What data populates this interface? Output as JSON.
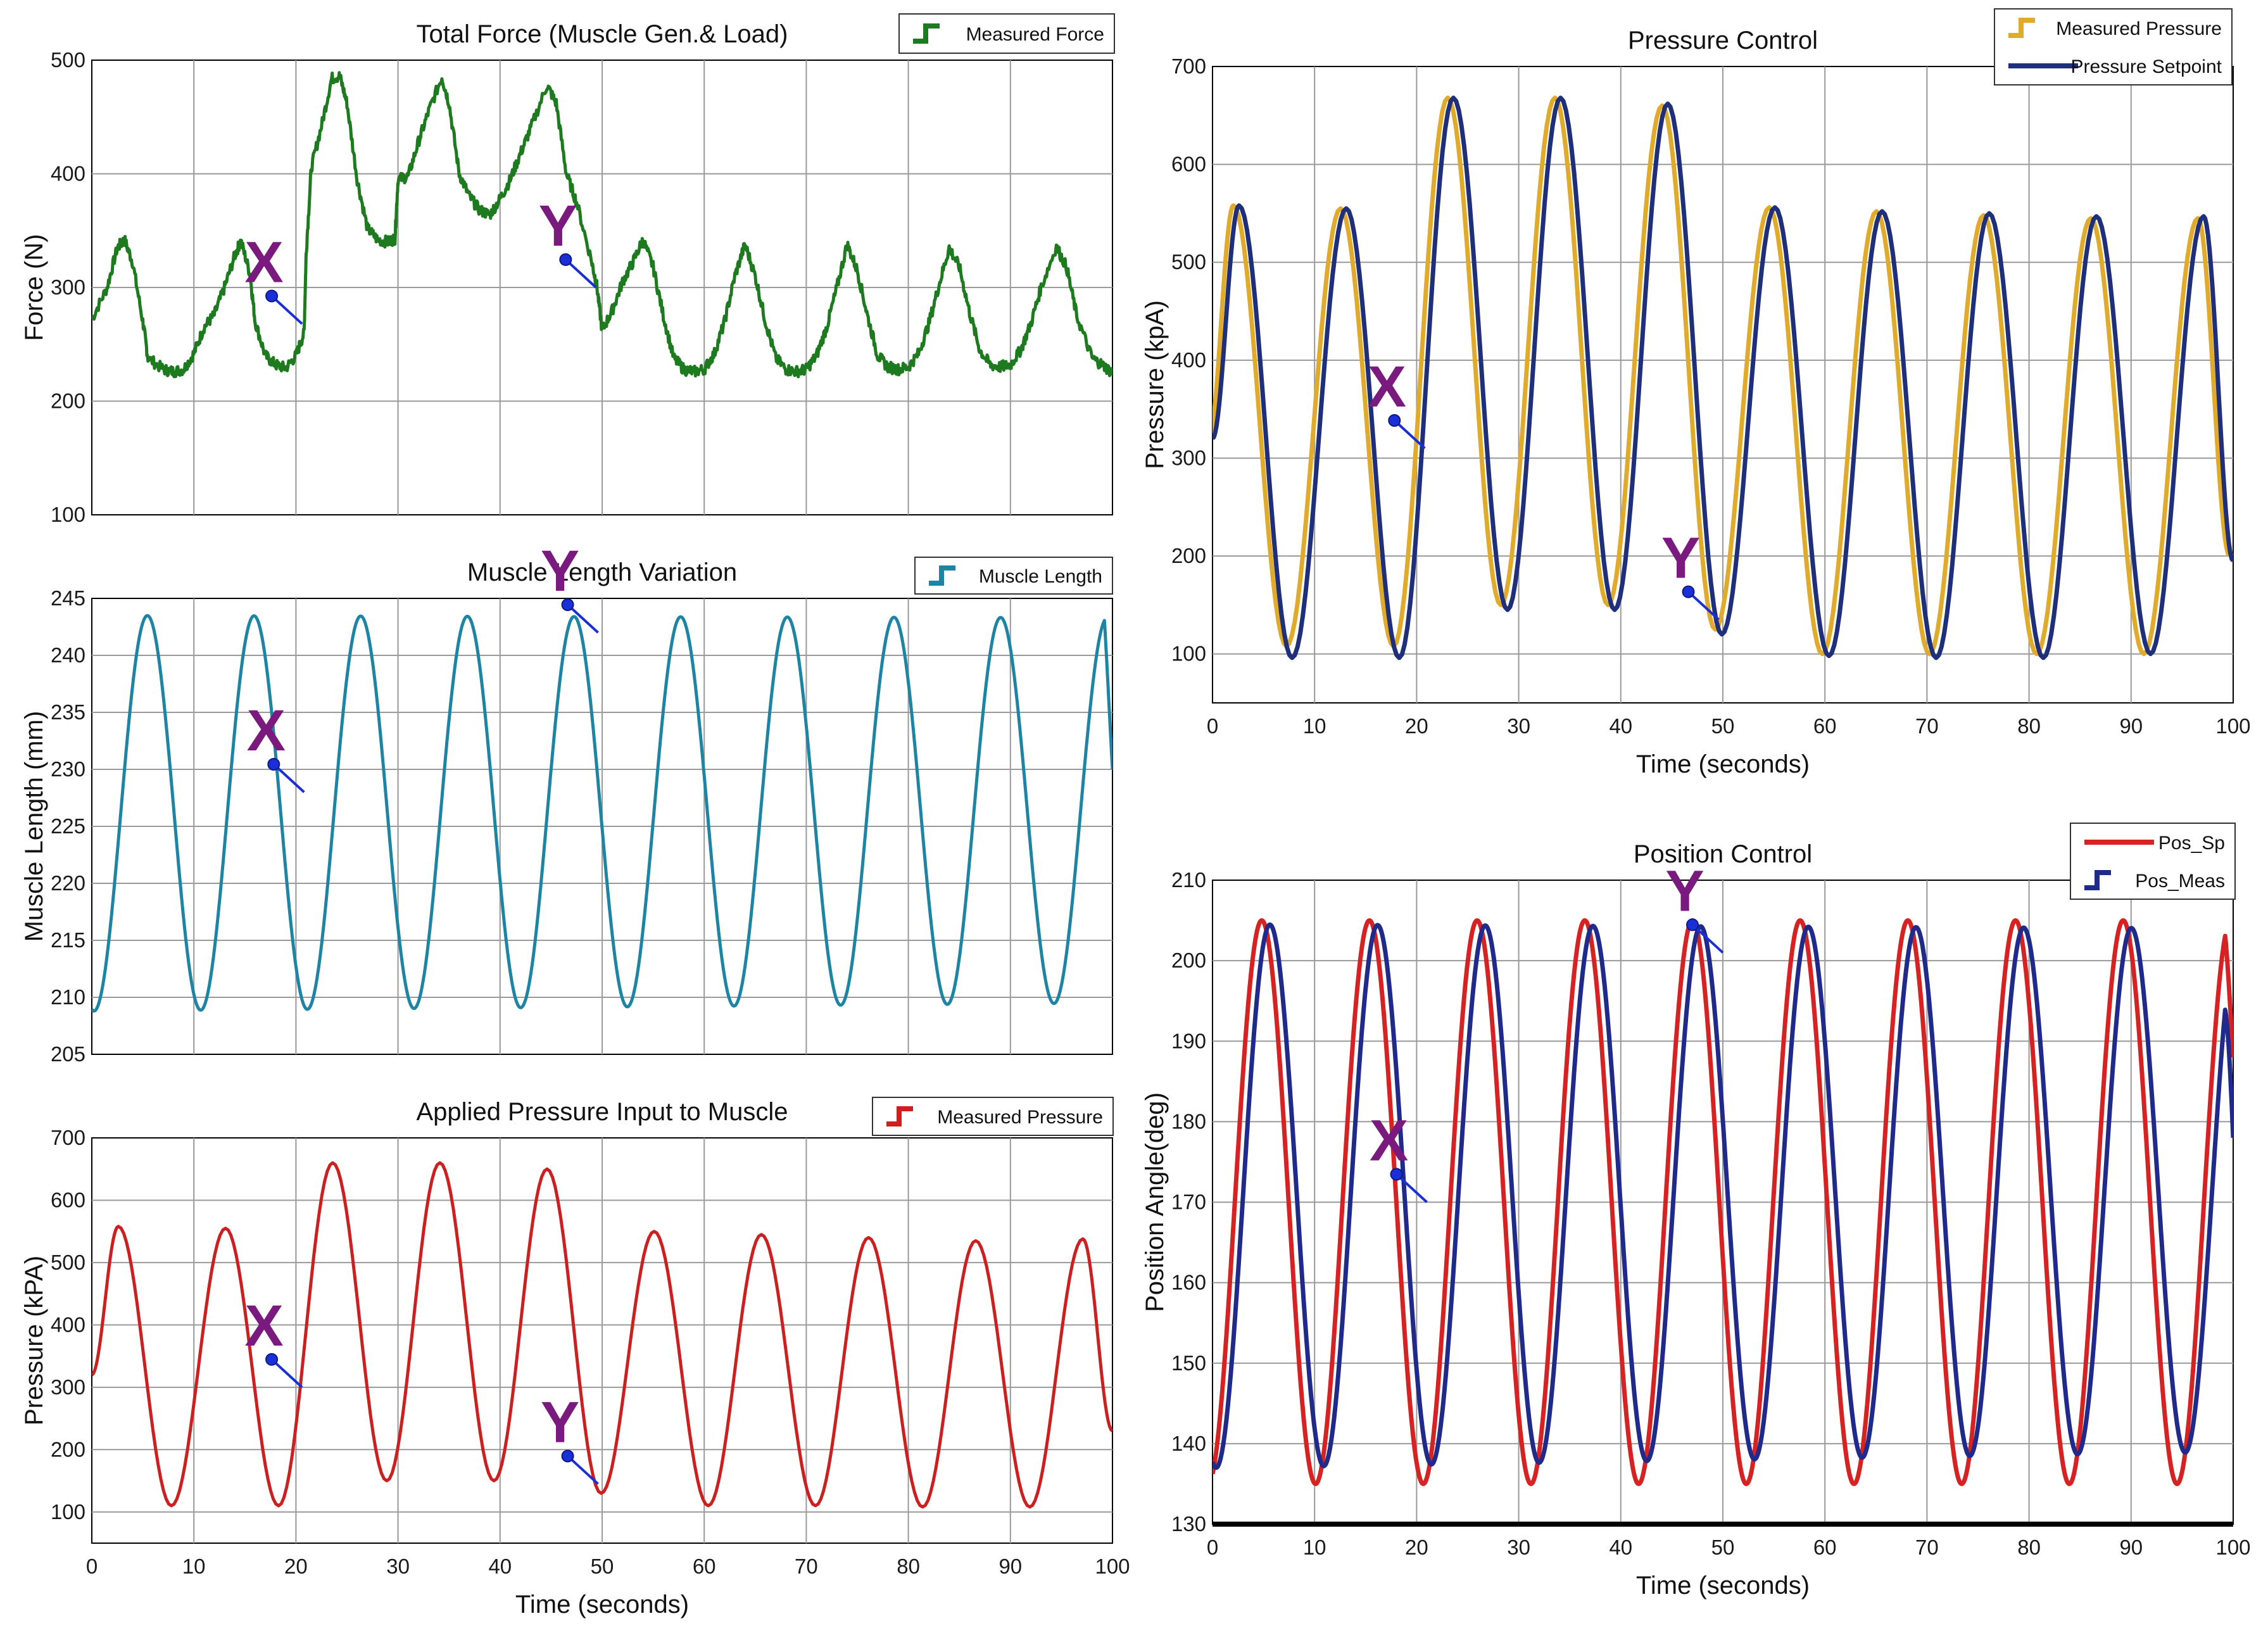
{
  "chart_data": [
    {
      "id": "force",
      "type": "line",
      "title": "Total Force (Muscle Gen.& Load)",
      "xlabel": "",
      "ylabel": "Force (N)",
      "xlim": [
        0,
        100
      ],
      "ylim": [
        100,
        500
      ],
      "xticks": [],
      "yticks": [
        100,
        200,
        300,
        400,
        500
      ],
      "xgrid": [
        10,
        20,
        30,
        40,
        50,
        60,
        70,
        80,
        90
      ],
      "grid": true,
      "legend_position": "top-right",
      "series": [
        {
          "name": "Measured Force",
          "color": "#1e7a1e",
          "style": "step",
          "points": [
            [
              0,
              272
            ],
            [
              1.5,
              300
            ],
            [
              2.5,
              335
            ],
            [
              3.2,
              342
            ],
            [
              4,
              322
            ],
            [
              5,
              270
            ],
            [
              5.5,
              238
            ],
            [
              7,
              228
            ],
            [
              8,
              226
            ],
            [
              9,
              228
            ],
            [
              10,
              242
            ],
            [
              11,
              265
            ],
            [
              12,
              276
            ],
            [
              13,
              300
            ],
            [
              14,
              328
            ],
            [
              14.6,
              341
            ],
            [
              15.5,
              312
            ],
            [
              16,
              270
            ],
            [
              17,
              240
            ],
            [
              18,
              232
            ],
            [
              19,
              229
            ],
            [
              20,
              240
            ],
            [
              20.8,
              260
            ],
            [
              21,
              330
            ],
            [
              21.5,
              405
            ],
            [
              22.5,
              442
            ],
            [
              23.5,
              484
            ],
            [
              24.3,
              486
            ],
            [
              25,
              462
            ],
            [
              26,
              395
            ],
            [
              27,
              352
            ],
            [
              28,
              342
            ],
            [
              29,
              340
            ],
            [
              29.7,
              343
            ],
            [
              30,
              395
            ],
            [
              31,
              398
            ],
            [
              32,
              428
            ],
            [
              33,
              455
            ],
            [
              34.3,
              485
            ],
            [
              35,
              462
            ],
            [
              36,
              400
            ],
            [
              37,
              380
            ],
            [
              38,
              368
            ],
            [
              39,
              364
            ],
            [
              40,
              378
            ],
            [
              41,
              395
            ],
            [
              42,
              418
            ],
            [
              43,
              440
            ],
            [
              44.6,
              478
            ],
            [
              45.5,
              462
            ],
            [
              46.5,
              400
            ],
            [
              47.5,
              375
            ],
            [
              49,
              322
            ],
            [
              49.5,
              300
            ],
            [
              50,
              262
            ],
            [
              51,
              280
            ],
            [
              52,
              305
            ],
            [
              53,
              322
            ],
            [
              54,
              342
            ],
            [
              55,
              318
            ],
            [
              56,
              275
            ],
            [
              57,
              238
            ],
            [
              58,
              228
            ],
            [
              59,
              226
            ],
            [
              60,
              228
            ],
            [
              61,
              242
            ],
            [
              62,
              270
            ],
            [
              63,
              310
            ],
            [
              64,
              338
            ],
            [
              65,
              310
            ],
            [
              66,
              270
            ],
            [
              67,
              238
            ],
            [
              68,
              228
            ],
            [
              69,
              226
            ],
            [
              70,
              228
            ],
            [
              71,
              240
            ],
            [
              72,
              265
            ],
            [
              73,
              300
            ],
            [
              74,
              338
            ],
            [
              75,
              315
            ],
            [
              76,
              275
            ],
            [
              77,
              240
            ],
            [
              78,
              230
            ],
            [
              79,
              228
            ],
            [
              80,
              230
            ],
            [
              81,
              242
            ],
            [
              82,
              268
            ],
            [
              83,
              302
            ],
            [
              84,
              335
            ],
            [
              85,
              318
            ],
            [
              86,
              278
            ],
            [
              87,
              245
            ],
            [
              88,
              232
            ],
            [
              89,
              230
            ],
            [
              90,
              232
            ],
            [
              91,
              245
            ],
            [
              92,
              268
            ],
            [
              93,
              300
            ],
            [
              94.5,
              336
            ],
            [
              95.5,
              318
            ],
            [
              96.5,
              275
            ],
            [
              98,
              238
            ],
            [
              99,
              232
            ],
            [
              100,
              225
            ]
          ]
        }
      ],
      "annotations": [
        {
          "label": "X",
          "x": 20.6,
          "y": 268
        },
        {
          "label": "Y",
          "x": 49.4,
          "y": 300
        }
      ]
    },
    {
      "id": "length",
      "type": "line",
      "title": "Muscle Length Variation",
      "xlabel": "",
      "ylabel": "Muscle Length (mm)",
      "xlim": [
        0,
        100
      ],
      "ylim": [
        205,
        245
      ],
      "xticks": [],
      "yticks": [
        205,
        210,
        215,
        220,
        225,
        230,
        235,
        240,
        245
      ],
      "xgrid": [
        10,
        20,
        30,
        40,
        50,
        60,
        70,
        80,
        90
      ],
      "grid": true,
      "legend_position": "top-right",
      "series": [
        {
          "name": "Muscle Length",
          "color": "#1e84a3",
          "style": "sine",
          "sine": {
            "period": 10.45,
            "phase": 0.22,
            "min_start": 208.8,
            "min_end": 209.5,
            "max_start": 243.5,
            "max_end": 243.3,
            "end_value": 230
          }
        }
      ],
      "annotations": [
        {
          "label": "X",
          "x": 20.8,
          "y": 228
        },
        {
          "label": "Y",
          "x": 49.6,
          "y": 242
        }
      ]
    },
    {
      "id": "pressure_input",
      "type": "line",
      "title": "Applied Pressure Input to Muscle",
      "xlabel": "Time (seconds)",
      "ylabel": "Pressure (kPA)",
      "xlim": [
        0,
        100
      ],
      "ylim": [
        50,
        700
      ],
      "xticks": [
        0,
        10,
        20,
        30,
        40,
        50,
        60,
        70,
        80,
        90,
        100
      ],
      "yticks": [
        100,
        200,
        300,
        400,
        500,
        600,
        700
      ],
      "xgrid": [
        10,
        20,
        30,
        40,
        50,
        60,
        70,
        80,
        90
      ],
      "grid": true,
      "legend_position": "top-right",
      "series": [
        {
          "name": "Measured Pressure",
          "color": "#cc1f1f",
          "style": "peaks",
          "peaks": [
            [
              0,
              320
            ],
            [
              2.6,
              558
            ],
            [
              7.8,
              110
            ],
            [
              13.1,
              555
            ],
            [
              18.3,
              110
            ],
            [
              23.6,
              660
            ],
            [
              28.9,
              150
            ],
            [
              34.1,
              660
            ],
            [
              39.4,
              150
            ],
            [
              44.6,
              650
            ],
            [
              49.9,
              130
            ],
            [
              55.1,
              550
            ],
            [
              60.4,
              110
            ],
            [
              65.6,
              545
            ],
            [
              70.9,
              110
            ],
            [
              76.1,
              540
            ],
            [
              81.4,
              108
            ],
            [
              86.6,
              535
            ],
            [
              91.9,
              108
            ],
            [
              97.1,
              538
            ],
            [
              100,
              230
            ]
          ]
        }
      ],
      "annotations": [
        {
          "label": "X",
          "x": 20.6,
          "y": 300
        },
        {
          "label": "Y",
          "x": 49.6,
          "y": 145
        }
      ]
    },
    {
      "id": "pressure_control",
      "type": "line",
      "title": "Pressure Control",
      "xlabel": "Time (seconds)",
      "ylabel": "Pressure (kpA)",
      "xlim": [
        0,
        100
      ],
      "ylim": [
        50,
        700
      ],
      "xticks": [
        0,
        10,
        20,
        30,
        40,
        50,
        60,
        70,
        80,
        90,
        100
      ],
      "yticks": [
        100,
        200,
        300,
        400,
        500,
        600,
        700
      ],
      "xgrid": [
        10,
        20,
        30,
        40,
        50,
        60,
        70,
        80,
        90
      ],
      "grid": true,
      "legend_position": "top-right",
      "series": [
        {
          "name": "Measured Pressure",
          "color": "#e0aa2a",
          "style": "peaks",
          "shift": -0.35,
          "peaks": [
            [
              0,
              320
            ],
            [
              2.4,
              558
            ],
            [
              7.6,
              108
            ],
            [
              12.9,
              555
            ],
            [
              18.1,
              108
            ],
            [
              23.4,
              668
            ],
            [
              28.6,
              150
            ],
            [
              33.9,
              668
            ],
            [
              39.1,
              150
            ],
            [
              44.4,
              660
            ],
            [
              49.6,
              125
            ],
            [
              54.9,
              556
            ],
            [
              60.1,
              100
            ],
            [
              65.4,
              552
            ],
            [
              70.6,
              100
            ],
            [
              75.9,
              548
            ],
            [
              81.1,
              100
            ],
            [
              86.4,
              545
            ],
            [
              91.6,
              100
            ],
            [
              96.9,
              545
            ],
            [
              100,
              200
            ]
          ]
        },
        {
          "name": "Pressure Setpoint",
          "color": "#1f2f7a",
          "style": "peaks",
          "peaks": [
            [
              0,
              320
            ],
            [
              2.6,
              558
            ],
            [
              7.8,
              96
            ],
            [
              13.1,
              555
            ],
            [
              18.3,
              96
            ],
            [
              23.6,
              668
            ],
            [
              28.9,
              145
            ],
            [
              34.1,
              668
            ],
            [
              39.4,
              145
            ],
            [
              44.6,
              662
            ],
            [
              49.9,
              120
            ],
            [
              55.1,
              556
            ],
            [
              60.4,
              98
            ],
            [
              65.6,
              552
            ],
            [
              70.9,
              96
            ],
            [
              76.1,
              550
            ],
            [
              81.4,
              96
            ],
            [
              86.6,
              547
            ],
            [
              91.9,
              100
            ],
            [
              97.1,
              547
            ],
            [
              100,
              195
            ]
          ]
        }
      ],
      "annotations": [
        {
          "label": "X",
          "x": 20.8,
          "y": 310
        },
        {
          "label": "Y",
          "x": 49.6,
          "y": 135
        }
      ]
    },
    {
      "id": "position_control",
      "type": "line",
      "title": "Position Control",
      "xlabel": "Time (seconds)",
      "ylabel": "Position Angle(deg)",
      "xlim": [
        0,
        100
      ],
      "ylim": [
        130,
        210
      ],
      "xticks": [
        0,
        10,
        20,
        30,
        40,
        50,
        60,
        70,
        80,
        90,
        100
      ],
      "yticks": [
        130,
        140,
        150,
        160,
        170,
        180,
        190,
        200,
        210
      ],
      "xgrid": [
        10,
        20,
        30,
        40,
        50,
        60,
        70,
        80,
        90
      ],
      "grid": true,
      "legend_position": "top-right",
      "series": [
        {
          "name": "Pos_Sp",
          "color": "#d62222",
          "style": "sine",
          "sine": {
            "period": 10.55,
            "phase": -0.45,
            "min_start": 135,
            "min_end": 135,
            "max_start": 205,
            "max_end": 205,
            "end_value": 188
          }
        },
        {
          "name": "Pos_Meas",
          "color": "#1f2a8a",
          "style": "sine",
          "sine": {
            "period": 10.55,
            "phase": 0.35,
            "min_start": 137,
            "min_end": 139,
            "max_start": 204.5,
            "max_end": 204,
            "end_value": 178
          }
        }
      ],
      "annotations": [
        {
          "label": "X",
          "x": 21,
          "y": 170
        },
        {
          "label": "Y",
          "x": 50,
          "y": 201
        }
      ]
    }
  ]
}
